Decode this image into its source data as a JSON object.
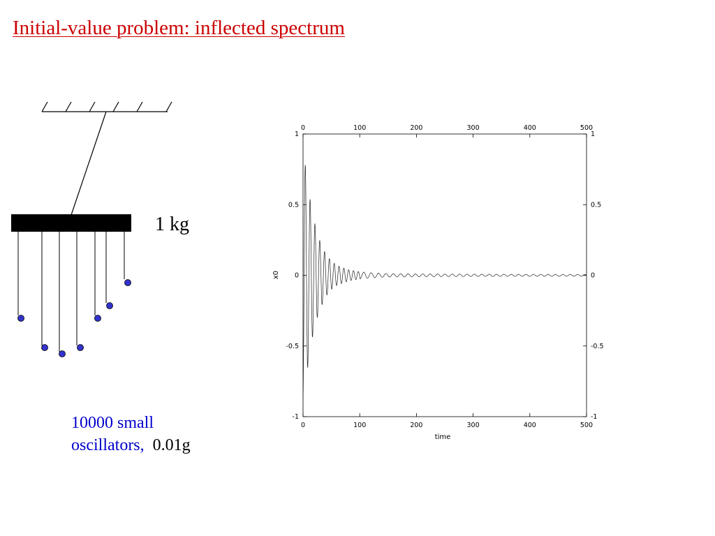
{
  "title": "Initial-value problem: inflected spectrum",
  "mass_label": "1 kg",
  "caption": {
    "line1": "10000 small",
    "line2_blue": "oscillators,",
    "line2_black": "0.01g"
  },
  "colors": {
    "title": "#cc0000",
    "caption_blue": "#0000cc",
    "bob_fill": "#3333cc",
    "black": "#000000"
  },
  "chart_data": {
    "type": "line",
    "xlabel": "time",
    "ylabel": "x0",
    "xlim": [
      0,
      500
    ],
    "ylim": [
      -1,
      1
    ],
    "x_ticks": [
      "0",
      "100",
      "200",
      "300",
      "400",
      "500"
    ],
    "y_ticks": [
      "1",
      "0.5",
      "0",
      "-0.5",
      "-1"
    ],
    "grid": false,
    "series": [
      {
        "description_none": "",
        "x": [
          0,
          2,
          4,
          6,
          8,
          10,
          12,
          14,
          16,
          20,
          25,
          30,
          40,
          50,
          60,
          80,
          100,
          120,
          150,
          200,
          300,
          400,
          500
        ],
        "y_envelope": [
          0.9,
          0.85,
          0.78,
          0.72,
          0.66,
          0.6,
          0.55,
          0.5,
          0.45,
          0.38,
          0.3,
          0.24,
          0.15,
          0.1,
          0.07,
          0.04,
          0.025,
          0.018,
          0.012,
          0.01,
          0.008,
          0.007,
          0.006
        ]
      }
    ]
  }
}
